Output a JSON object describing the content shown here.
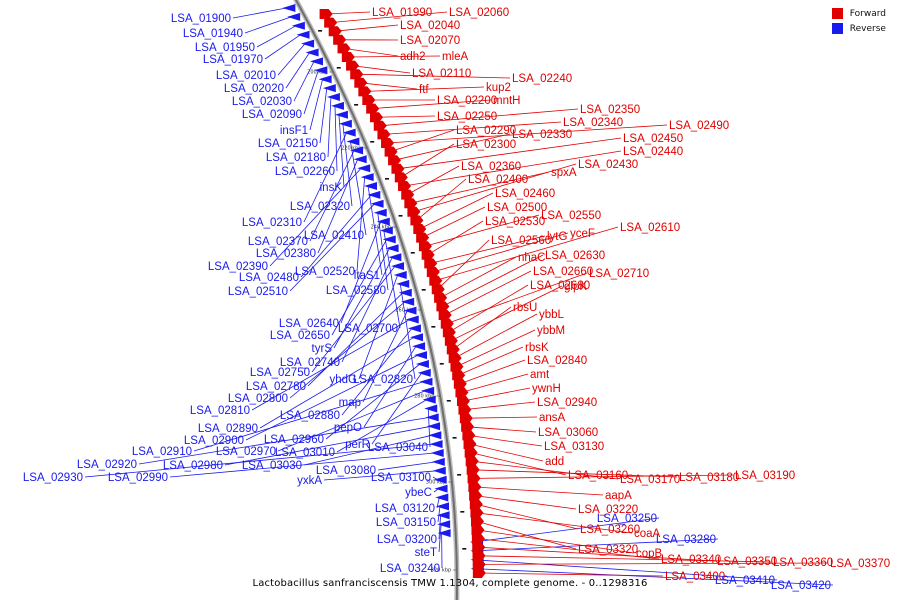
{
  "caption": "Lactobacillus sanfranciscensis TMW 1.1304, complete genome. - 0..1298316",
  "legend": [
    {
      "label": "Forward",
      "color": "#e00000"
    },
    {
      "label": "Reverse",
      "color": "#1a1aee"
    }
  ],
  "ticks": [
    "200 kbp",
    "220 kbp",
    "240 kbp",
    "260 kbp",
    "280 kbp",
    "300 kbp",
    "320 kbp"
  ],
  "forward_labels": [
    "LSA_01990",
    "LSA_02060",
    "LSA_02040",
    "LSA_02070",
    "adh2",
    "mleA",
    "LSA_02110",
    "LSA_02240",
    "ftf",
    "kup2",
    "LSA_02200",
    "mntH",
    "LSA_02250",
    "LSA_02350",
    "LSA_02340",
    "LSA_02490",
    "LSA_02290",
    "LSA_02330",
    "LSA_02450",
    "LSA_02300",
    "LSA_02440",
    "LSA_02360",
    "spxA",
    "LSA_02430",
    "LSA_02400",
    "LSA_02460",
    "LSA_02500",
    "LSA_02550",
    "LSA_02530",
    "lytG",
    "yceF",
    "LSA_02610",
    "LSA_02560",
    "nhaC",
    "LSA_02630",
    "LSA_02660",
    "LSA_02710",
    "LSA_02680",
    "glpK",
    "rbsU",
    "ybbL",
    "ybbM",
    "rbsK",
    "LSA_02840",
    "amt",
    "ywnH",
    "LSA_02940",
    "ansA",
    "LSA_03060",
    "LSA_03130",
    "add",
    "LSA_03160",
    "LSA_03170",
    "LSA_03180",
    "LSA_03190",
    "aapA",
    "LSA_03220",
    "LSA_03260",
    "coaA",
    "LSA_03320",
    "copB",
    "LSA_03340",
    "LSA_03350",
    "LSA_03360",
    "LSA_03370",
    "LSA_03400"
  ],
  "reverse_labels": [
    "LSA_01900",
    "LSA_01940",
    "LSA_01950",
    "LSA_01970",
    "LSA_02010",
    "LSA_02020",
    "LSA_02030",
    "LSA_02090",
    "insF1",
    "LSA_02150",
    "LSA_02180",
    "LSA_02260",
    "insK",
    "LSA_02320",
    "LSA_02310",
    "LSA_02410",
    "LSA_02370",
    "LSA_02380",
    "LSA_02390",
    "LSA_02520",
    "ltaS1",
    "LSA_02480",
    "LSA_02510",
    "LSA_02580",
    "LSA_02640",
    "LSA_02700",
    "LSA_02650",
    "tyrS",
    "LSA_02740",
    "LSA_02750",
    "yhdG",
    "LSA_02820",
    "LSA_02780",
    "LSA_02800",
    "map",
    "LSA_02810",
    "LSA_02880",
    "LSA_02890",
    "pepO",
    "LSA_02900",
    "LSA_02960",
    "perR",
    "LSA_02910",
    "LSA_02970",
    "LSA_03010",
    "LSA_03040",
    "LSA_02920",
    "LSA_02980",
    "LSA_03030",
    "LSA_02930",
    "LSA_02990",
    "LSA_03080",
    "yxkA",
    "LSA_03100",
    "ybeC",
    "LSA_03120",
    "LSA_03150",
    "LSA_03200",
    "steT",
    "LSA_03240",
    "LSA_03250",
    "LSA_03280",
    "LSA_03410",
    "LSA_03420"
  ]
}
